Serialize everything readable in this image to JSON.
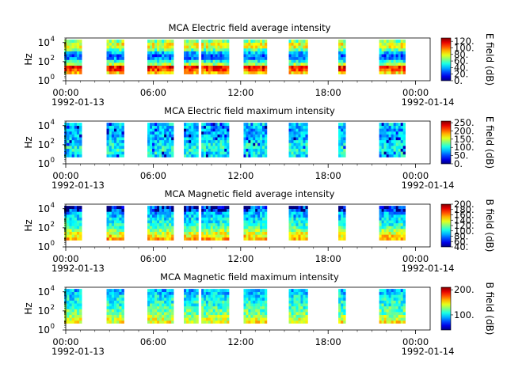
{
  "chart_data": [
    {
      "type": "heatmap",
      "title": "MCA  Electric field average intensity",
      "ylabel": "Hz",
      "yscale": "log",
      "ylim": [
        1,
        30000
      ],
      "yticks": [
        {
          "value": 1,
          "label": "10",
          "exp": "0"
        },
        {
          "value": 100,
          "label": "10",
          "exp": "2"
        },
        {
          "value": 10000,
          "label": "10",
          "exp": "4"
        }
      ],
      "xlim": [
        "1992-01-13 00:00",
        "1992-01-14 01:00"
      ],
      "xticks": [
        "00:00",
        "06:00",
        "12:00",
        "18:00",
        "00:00"
      ],
      "xtick_dates": [
        "1992-01-13",
        "",
        "",
        "",
        "1992-01-14"
      ],
      "colorbar": {
        "label": "E field (dB)",
        "min": 0,
        "max": 130,
        "ticks": [
          "0.",
          "20.",
          "40.",
          "60.",
          "80.",
          "100.",
          "120."
        ]
      },
      "coverage_hours": [
        [
          -0.1,
          1.1
        ],
        [
          2.8,
          4.0
        ],
        [
          5.6,
          7.4
        ],
        [
          8.1,
          9.1
        ],
        [
          9.3,
          11.2
        ],
        [
          12.2,
          13.8
        ],
        [
          15.3,
          16.6
        ],
        [
          18.7,
          19.2
        ],
        [
          21.5,
          23.3
        ]
      ]
    },
    {
      "type": "heatmap",
      "title": "MCA  Electric field maximum intensity",
      "ylabel": "Hz",
      "yscale": "log",
      "ylim": [
        1,
        30000
      ],
      "yticks": [
        {
          "value": 1,
          "label": "10",
          "exp": "0"
        },
        {
          "value": 100,
          "label": "10",
          "exp": "2"
        },
        {
          "value": 10000,
          "label": "10",
          "exp": "4"
        }
      ],
      "xlim": [
        "1992-01-13 00:00",
        "1992-01-14 01:00"
      ],
      "xticks": [
        "00:00",
        "06:00",
        "12:00",
        "18:00",
        "00:00"
      ],
      "xtick_dates": [
        "1992-01-13",
        "",
        "",
        "",
        "1992-01-14"
      ],
      "colorbar": {
        "label": "E field (dB)",
        "min": 0,
        "max": 260,
        "ticks": [
          "0.",
          "50.",
          "100.",
          "150.",
          "200.",
          "250."
        ]
      },
      "coverage_hours": [
        [
          -0.1,
          1.1
        ],
        [
          2.8,
          4.0
        ],
        [
          5.6,
          7.4
        ],
        [
          8.1,
          9.1
        ],
        [
          9.3,
          11.2
        ],
        [
          12.2,
          13.8
        ],
        [
          15.3,
          16.6
        ],
        [
          18.7,
          19.2
        ],
        [
          21.5,
          23.3
        ]
      ]
    },
    {
      "type": "heatmap",
      "title": "MCA  Magnetic field average intensity",
      "ylabel": "Hz",
      "yscale": "log",
      "ylim": [
        1,
        30000
      ],
      "yticks": [
        {
          "value": 1,
          "label": "10",
          "exp": "0"
        },
        {
          "value": 100,
          "label": "10",
          "exp": "2"
        },
        {
          "value": 10000,
          "label": "10",
          "exp": "4"
        }
      ],
      "xlim": [
        "1992-01-13 00:00",
        "1992-01-14 01:00"
      ],
      "xticks": [
        "00:00",
        "06:00",
        "12:00",
        "18:00",
        "00:00"
      ],
      "xtick_dates": [
        "1992-01-13",
        "",
        "",
        "",
        "1992-01-14"
      ],
      "colorbar": {
        "label": "B field (dB)",
        "min": 40,
        "max": 200,
        "ticks": [
          "40.",
          "60.",
          "80.",
          "100.",
          "120.",
          "140.",
          "160.",
          "180.",
          "200."
        ]
      },
      "coverage_hours": [
        [
          -0.1,
          1.1
        ],
        [
          2.8,
          4.0
        ],
        [
          5.6,
          7.4
        ],
        [
          8.1,
          9.1
        ],
        [
          9.3,
          11.2
        ],
        [
          12.2,
          13.8
        ],
        [
          15.3,
          16.6
        ],
        [
          18.7,
          19.2
        ],
        [
          21.5,
          23.3
        ]
      ]
    },
    {
      "type": "heatmap",
      "title": "MCA  Magnetic field maximum intensity",
      "ylabel": "Hz",
      "yscale": "log",
      "ylim": [
        1,
        30000
      ],
      "yticks": [
        {
          "value": 1,
          "label": "10",
          "exp": "0"
        },
        {
          "value": 100,
          "label": "10",
          "exp": "2"
        },
        {
          "value": 10000,
          "label": "10",
          "exp": "4"
        }
      ],
      "xlim": [
        "1992-01-13 00:00",
        "1992-01-14 01:00"
      ],
      "xticks": [
        "00:00",
        "06:00",
        "12:00",
        "18:00",
        "00:00"
      ],
      "xtick_dates": [
        "1992-01-13",
        "",
        "",
        "",
        "1992-01-14"
      ],
      "colorbar": {
        "label": "B field (dB)",
        "min": 40,
        "max": 210,
        "ticks": [
          "100.",
          "200."
        ]
      },
      "coverage_hours": [
        [
          -0.1,
          1.1
        ],
        [
          2.8,
          4.0
        ],
        [
          5.6,
          7.4
        ],
        [
          8.1,
          9.1
        ],
        [
          9.3,
          11.2
        ],
        [
          12.2,
          13.8
        ],
        [
          15.3,
          16.6
        ],
        [
          18.7,
          19.2
        ],
        [
          21.5,
          23.3
        ]
      ]
    }
  ]
}
